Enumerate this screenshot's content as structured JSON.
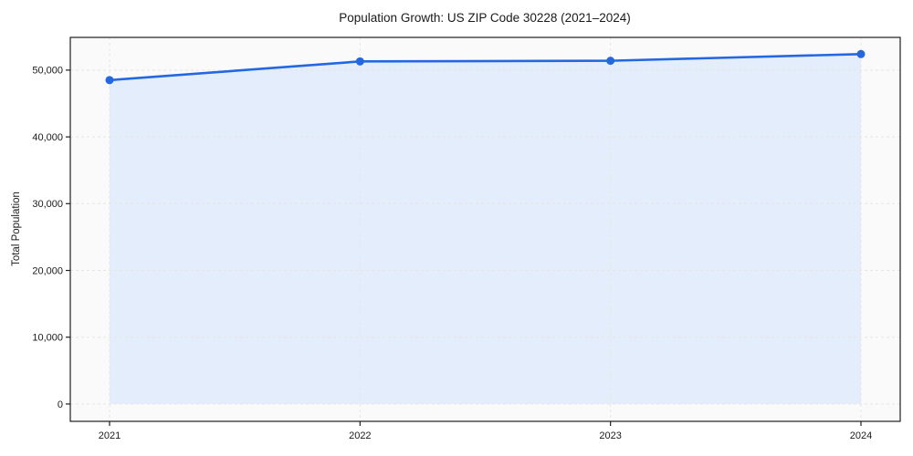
{
  "chart_data": {
    "type": "area",
    "title": "Population Growth: US ZIP Code 30228 (2021–2024)",
    "xlabel": "",
    "ylabel": "Total Population",
    "categories": [
      "2021",
      "2022",
      "2023",
      "2024"
    ],
    "series": [
      {
        "name": "Total Population",
        "values": [
          48500,
          51300,
          51400,
          52400
        ]
      }
    ],
    "ylim": [
      -2600,
      54900
    ],
    "y_ticks": [
      0,
      10000,
      20000,
      30000,
      40000,
      50000
    ],
    "y_tick_labels": [
      "0",
      "10,000",
      "20,000",
      "30,000",
      "40,000",
      "50,000"
    ],
    "grid": "dashed-both",
    "legend_position": "none",
    "baseline_fill_to": 0,
    "colors": {
      "line": "#2368e0",
      "marker": "#2368e0",
      "area_fill": "#e3edfb",
      "grid": "#e6e6e6",
      "plot_background": "#fafafa",
      "figure_background": "#ffffff",
      "spine": "#1f1f1f",
      "text": "#1a1a1a"
    }
  }
}
